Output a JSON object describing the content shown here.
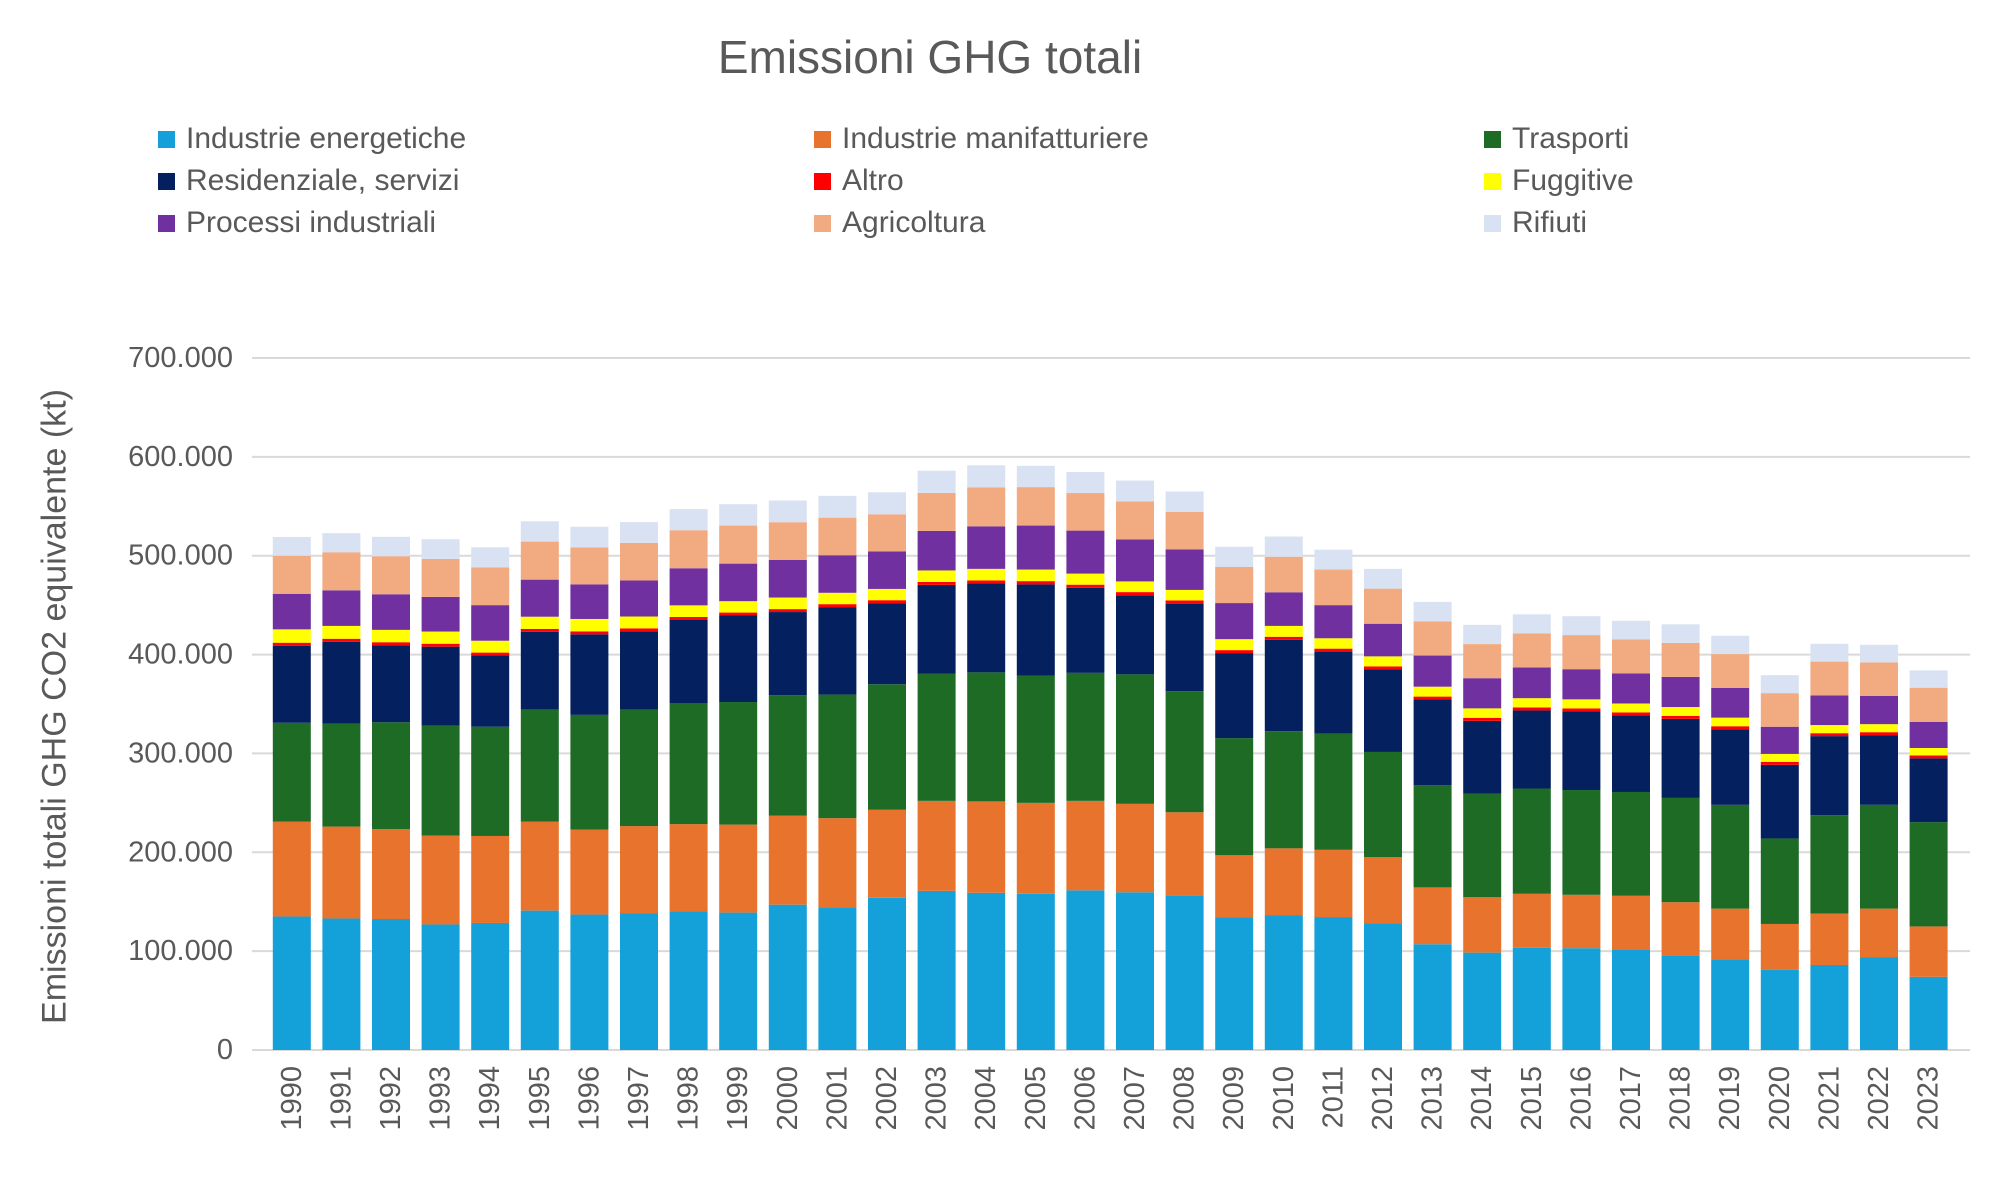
{
  "page": {
    "title": "Emissioni GHG totali"
  },
  "colors": {
    "background": "#FFFFFF",
    "text": "#595959",
    "grid": "#D9D9D9"
  },
  "chart_data": {
    "type": "bar",
    "stacked": true,
    "title": "Emissioni GHG totali",
    "xlabel": "",
    "ylabel": "Emissioni totali GHG CO2 equivalente (kt)",
    "unit": "kt CO2 equivalente",
    "ylim": [
      0,
      700000
    ],
    "ytick_interval": 100000,
    "ytick_labels": [
      "0",
      "100.000",
      "200.000",
      "300.000",
      "400.000",
      "500.000",
      "600.000",
      "700.000"
    ],
    "grid": true,
    "legend_position": "top",
    "legend_columns": 3,
    "categories": [
      "1990",
      "1991",
      "1992",
      "1993",
      "1994",
      "1995",
      "1996",
      "1997",
      "1998",
      "1999",
      "2000",
      "2001",
      "2002",
      "2003",
      "2004",
      "2005",
      "2006",
      "2007",
      "2008",
      "2009",
      "2010",
      "2011",
      "2012",
      "2013",
      "2014",
      "2015",
      "2016",
      "2017",
      "2018",
      "2019",
      "2020",
      "2021",
      "2022",
      "2023"
    ],
    "series": [
      {
        "name": "Industrie energetiche",
        "color": "#14A0D8",
        "values": [
          135000,
          133000,
          132500,
          127000,
          128500,
          141000,
          137000,
          138500,
          140500,
          139000,
          147000,
          144500,
          154000,
          161000,
          159000,
          158000,
          161500,
          159500,
          156500,
          134000,
          136500,
          134500,
          128000,
          107000,
          98500,
          103500,
          103000,
          102000,
          95500,
          91500,
          81000,
          86000,
          94000,
          74000
        ]
      },
      {
        "name": "Industrie manifatturiere",
        "color": "#E8732D",
        "values": [
          96000,
          93000,
          91000,
          90000,
          88000,
          90000,
          86000,
          88000,
          88000,
          89000,
          90000,
          90000,
          89000,
          91000,
          92500,
          92000,
          90500,
          89500,
          84000,
          63000,
          67500,
          68000,
          67000,
          57500,
          56000,
          54500,
          54000,
          54000,
          54000,
          51500,
          46500,
          52000,
          49000,
          51000
        ]
      },
      {
        "name": "Trasporti",
        "color": "#1E6B26",
        "values": [
          100000,
          104000,
          108000,
          111000,
          110500,
          113500,
          116000,
          118000,
          122500,
          124000,
          122000,
          125000,
          127000,
          128500,
          130500,
          128500,
          129500,
          131000,
          122500,
          118500,
          118500,
          117500,
          106500,
          103500,
          105000,
          106500,
          106000,
          105000,
          105500,
          105000,
          86500,
          99500,
          105000,
          105500
        ]
      },
      {
        "name": "Residenziale, servizi",
        "color": "#04205F",
        "values": [
          78000,
          83000,
          78000,
          80000,
          72000,
          78500,
          81500,
          79000,
          84000,
          87500,
          84000,
          88500,
          82000,
          90000,
          90000,
          92500,
          86000,
          80000,
          88500,
          86000,
          92500,
          83000,
          83500,
          86500,
          73500,
          79000,
          79500,
          77500,
          80000,
          76500,
          74500,
          80000,
          70500,
          64500
        ]
      },
      {
        "name": "Altro",
        "color": "#FF0000",
        "values": [
          3000,
          3000,
          3000,
          3000,
          3000,
          3000,
          3000,
          3000,
          3000,
          3000,
          3000,
          3000,
          3000,
          3000,
          3000,
          3300,
          3200,
          3200,
          3200,
          3000,
          3000,
          3000,
          3000,
          3000,
          3000,
          3000,
          3000,
          3000,
          3000,
          3000,
          3000,
          3000,
          3000,
          3000
        ]
      },
      {
        "name": "Fuggitive",
        "color": "#FFFF00",
        "values": [
          13500,
          13000,
          12500,
          12300,
          12000,
          12300,
          12500,
          12000,
          11800,
          11500,
          11700,
          11500,
          11400,
          11600,
          11700,
          11700,
          11200,
          10800,
          10700,
          11100,
          11000,
          10500,
          10200,
          10000,
          9600,
          9400,
          9200,
          9000,
          8900,
          8700,
          8000,
          8200,
          8100,
          7500
        ]
      },
      {
        "name": "Processi industriali",
        "color": "#7030A0",
        "values": [
          36000,
          36000,
          36000,
          35000,
          36000,
          37500,
          35000,
          36500,
          37500,
          38000,
          38000,
          38000,
          38000,
          40000,
          43000,
          44500,
          43500,
          42500,
          41000,
          36500,
          34000,
          33500,
          33000,
          31500,
          30500,
          31000,
          30500,
          30500,
          30500,
          30000,
          27500,
          30000,
          28500,
          26500
        ]
      },
      {
        "name": "Agricoltura",
        "color": "#F2AA80",
        "values": [
          38500,
          38500,
          38500,
          38500,
          38300,
          38500,
          37500,
          38000,
          38500,
          38500,
          38200,
          38000,
          37500,
          38500,
          39500,
          38900,
          38000,
          38500,
          37800,
          36500,
          36000,
          36000,
          35500,
          34500,
          34500,
          34500,
          34500,
          34300,
          34500,
          34300,
          34000,
          34200,
          34000,
          34500
        ]
      },
      {
        "name": "Rifiuti",
        "color": "#D8E2F2",
        "values": [
          19000,
          19300,
          19600,
          19900,
          20200,
          20500,
          20800,
          21000,
          21300,
          21600,
          21900,
          22100,
          22300,
          22400,
          22300,
          21500,
          21300,
          21000,
          20800,
          20500,
          20400,
          20100,
          20000,
          19800,
          19500,
          19300,
          19100,
          18900,
          18700,
          18500,
          18200,
          18000,
          17800,
          17500
        ]
      }
    ]
  }
}
